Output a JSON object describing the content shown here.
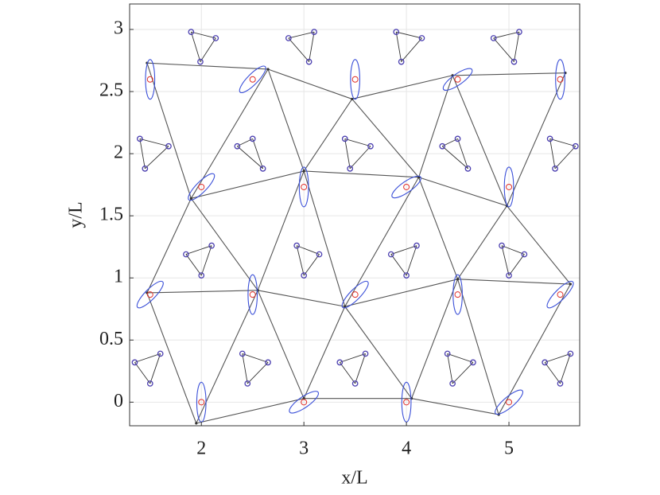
{
  "chart_data": {
    "type": "network",
    "xlabel": "x/L",
    "ylabel": "y/L",
    "xlim": [
      1.3,
      5.69
    ],
    "ylim": [
      -0.19,
      3.205
    ],
    "xticks": [
      2,
      3,
      4,
      5
    ],
    "yticks": [
      0,
      0.5,
      1,
      1.5,
      2,
      2.5,
      3
    ],
    "grid": true,
    "sites": {
      "color": "#e0302a",
      "x": [
        2,
        3,
        4,
        5,
        1.5,
        2.5,
        3.5,
        4.5,
        5.5,
        2,
        3,
        4,
        5,
        1.5,
        2.5,
        3.5,
        4.5,
        5.5
      ],
      "y": [
        0,
        0,
        0,
        0,
        0.866,
        0.866,
        0.866,
        0.866,
        0.866,
        1.732,
        1.732,
        1.732,
        1.732,
        2.598,
        2.598,
        2.598,
        2.598,
        2.598
      ]
    },
    "ellipses": {
      "color": "#3a4fd8",
      "major": 0.16,
      "minor": 0.045,
      "angle": [
        90,
        30,
        90,
        35,
        40,
        90,
        40,
        90,
        40,
        40,
        90,
        30,
        90,
        90,
        40,
        90,
        30,
        90
      ]
    },
    "nodes": {
      "color": "#333",
      "x": [
        1.95,
        3.0,
        4.05,
        4.9,
        1.47,
        2.55,
        3.4,
        4.5,
        5.6,
        1.9,
        3.0,
        4.12,
        4.98,
        1.47,
        2.65,
        3.47,
        4.45,
        5.55
      ],
      "y": [
        -0.17,
        0.03,
        0.03,
        -0.1,
        0.88,
        0.9,
        0.77,
        0.99,
        0.95,
        1.64,
        1.86,
        1.81,
        1.58,
        2.73,
        2.68,
        2.44,
        2.63,
        2.65
      ]
    },
    "clusters": {
      "color": "#4b3fb0",
      "points": [
        {
          "x": [
            1.9,
            1.99,
            2.14
          ],
          "y": [
            2.98,
            2.74,
            2.93
          ]
        },
        {
          "x": [
            2.85,
            3.05,
            3.1
          ],
          "y": [
            2.93,
            2.74,
            2.98
          ]
        },
        {
          "x": [
            3.9,
            3.95,
            4.15
          ],
          "y": [
            2.98,
            2.74,
            2.93
          ]
        },
        {
          "x": [
            4.85,
            5.05,
            5.1
          ],
          "y": [
            2.93,
            2.74,
            2.98
          ]
        },
        {
          "x": [
            1.4,
            1.45,
            1.68
          ],
          "y": [
            2.12,
            1.88,
            2.06
          ]
        },
        {
          "x": [
            2.35,
            2.5,
            2.6
          ],
          "y": [
            2.06,
            2.12,
            1.88
          ]
        },
        {
          "x": [
            3.4,
            3.45,
            3.65
          ],
          "y": [
            2.12,
            1.88,
            2.06
          ]
        },
        {
          "x": [
            4.35,
            4.5,
            4.6
          ],
          "y": [
            2.06,
            2.12,
            1.88
          ]
        },
        {
          "x": [
            5.4,
            5.45,
            5.65
          ],
          "y": [
            2.12,
            1.88,
            2.06
          ]
        },
        {
          "x": [
            1.85,
            2.0,
            2.1
          ],
          "y": [
            1.19,
            1.02,
            1.26
          ]
        },
        {
          "x": [
            2.93,
            3.0,
            3.15
          ],
          "y": [
            1.26,
            1.02,
            1.19
          ]
        },
        {
          "x": [
            3.85,
            4.0,
            4.1
          ],
          "y": [
            1.19,
            1.02,
            1.26
          ]
        },
        {
          "x": [
            4.93,
            5.0,
            5.15
          ],
          "y": [
            1.26,
            1.02,
            1.19
          ]
        },
        {
          "x": [
            1.35,
            1.5,
            1.6
          ],
          "y": [
            0.32,
            0.15,
            0.39
          ]
        },
        {
          "x": [
            2.4,
            2.45,
            2.65
          ],
          "y": [
            0.39,
            0.15,
            0.32
          ]
        },
        {
          "x": [
            3.35,
            3.5,
            3.6
          ],
          "y": [
            0.32,
            0.15,
            0.39
          ]
        },
        {
          "x": [
            4.4,
            4.45,
            4.65
          ],
          "y": [
            0.39,
            0.15,
            0.32
          ]
        },
        {
          "x": [
            5.35,
            5.5,
            5.6
          ],
          "y": [
            0.32,
            0.15,
            0.39
          ]
        }
      ]
    }
  }
}
